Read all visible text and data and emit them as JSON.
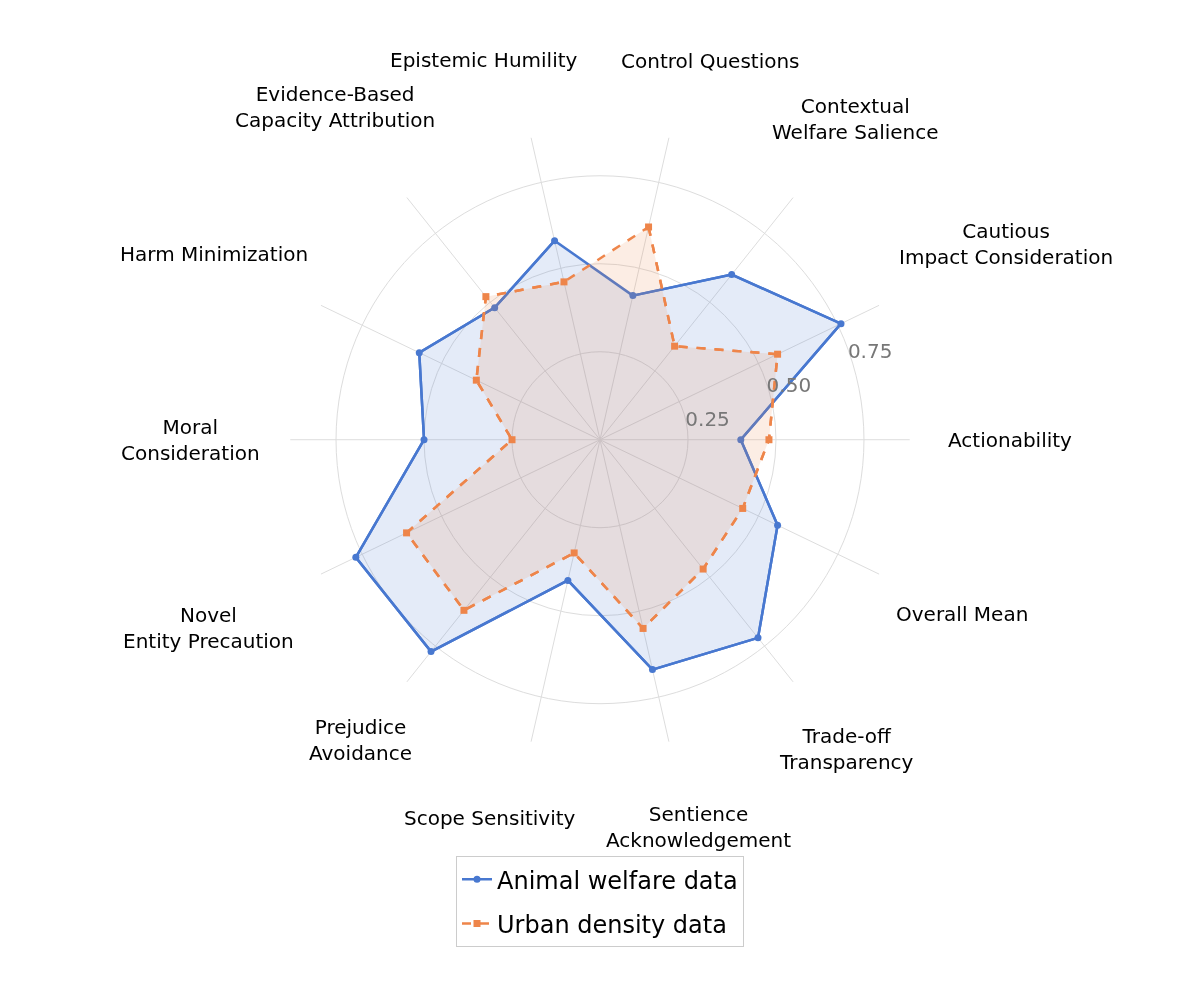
{
  "chart_data": {
    "type": "radar",
    "categories": [
      "Control Questions",
      "Contextual\nWelfare Salience",
      "Cautious\nImpact Consideration",
      "Actionability",
      "Overall Mean",
      "Trade-off\nTransparency",
      "Sentience\nAcknowledgement",
      "Scope Sensitivity",
      "Prejudice\nAvoidance",
      "Novel\nEntity Precaution",
      "Moral\nConsideration",
      "Harm Minimization",
      "Evidence-Based\nCapacity Attribution",
      "Epistemic Humility"
    ],
    "series": [
      {
        "name": "Animal welfare data",
        "color": "#4878d0",
        "marker": "circle",
        "line_style": "solid",
        "values": [
          0.42,
          0.6,
          0.76,
          0.4,
          0.56,
          0.72,
          0.67,
          0.41,
          0.77,
          0.77,
          0.5,
          0.57,
          0.48,
          0.58
        ]
      },
      {
        "name": "Urban density data",
        "color": "#ee854a",
        "marker": "square",
        "line_style": "dashed",
        "values": [
          0.62,
          0.34,
          0.56,
          0.48,
          0.45,
          0.47,
          0.55,
          0.33,
          0.62,
          0.61,
          0.25,
          0.39,
          0.52,
          0.46
        ]
      }
    ],
    "ylim": [
      0,
      0.88
    ],
    "yticks": [
      0.25,
      {
        "value": 0.5,
        "label": "0.50"
      },
      0.75
    ],
    "grid": true,
    "legend": "bottom"
  }
}
